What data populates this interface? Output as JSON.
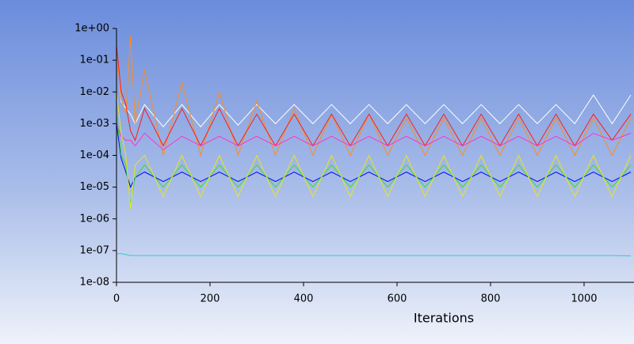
{
  "chart_data": {
    "type": "line",
    "x_label": "Iterations",
    "log_y": true,
    "xlim": [
      0,
      1108
    ],
    "ylim": [
      1e-08,
      1
    ],
    "xticks": [
      0,
      200,
      400,
      600,
      800,
      1000
    ],
    "yticks": [
      {
        "value": 1,
        "label": "1e+00"
      },
      {
        "value": 0.1,
        "label": "1e-01"
      },
      {
        "value": 0.01,
        "label": "1e-02"
      },
      {
        "value": 0.001,
        "label": "1e-03"
      },
      {
        "value": 0.0001,
        "label": "1e-04"
      },
      {
        "value": 1e-05,
        "label": "1e-05"
      },
      {
        "value": 1e-06,
        "label": "1e-06"
      },
      {
        "value": 1e-07,
        "label": "1e-07"
      },
      {
        "value": 1e-08,
        "label": "1e-08"
      }
    ],
    "x": [
      0,
      10,
      20,
      30,
      40,
      60,
      100,
      140,
      180,
      220,
      260,
      300,
      340,
      380,
      420,
      460,
      500,
      540,
      580,
      620,
      660,
      700,
      740,
      780,
      820,
      860,
      900,
      940,
      980,
      1020,
      1060,
      1100
    ],
    "series": [
      {
        "color": "#ffffff",
        "values": [
          0.3,
          0.005,
          0.003,
          0.002,
          0.001,
          0.004,
          0.0008,
          0.004,
          0.0008,
          0.004,
          0.0009,
          0.004,
          0.001,
          0.004,
          0.001,
          0.004,
          0.001,
          0.004,
          0.001,
          0.004,
          0.001,
          0.004,
          0.001,
          0.004,
          0.001,
          0.004,
          0.001,
          0.004,
          0.001,
          0.008,
          0.001,
          0.008
        ]
      },
      {
        "color": "#ff8c1a",
        "values": [
          0.2,
          0.006,
          0.002,
          0.6,
          0.001,
          0.05,
          0.0001,
          0.02,
          0.0001,
          0.01,
          0.0001,
          0.005,
          0.0001,
          0.003,
          0.0001,
          0.002,
          0.0001,
          0.002,
          0.0001,
          0.0015,
          0.0001,
          0.0015,
          0.0001,
          0.0015,
          0.0001,
          0.0015,
          0.0001,
          0.0015,
          0.0001,
          0.0015,
          0.0001,
          0.0015
        ]
      },
      {
        "color": "#ff1a1a",
        "values": [
          0.3,
          0.01,
          0.004,
          0.0006,
          0.0003,
          0.003,
          0.0002,
          0.003,
          0.0002,
          0.003,
          0.0002,
          0.002,
          0.0002,
          0.002,
          0.0002,
          0.002,
          0.0002,
          0.002,
          0.0002,
          0.002,
          0.0002,
          0.002,
          0.0002,
          0.002,
          0.0002,
          0.002,
          0.0002,
          0.002,
          0.0002,
          0.002,
          0.0003,
          0.002
        ]
      },
      {
        "color": "#ff33cc",
        "values": [
          0.001,
          0.0004,
          0.0003,
          0.0003,
          0.0002,
          0.0005,
          0.00015,
          0.0004,
          0.0002,
          0.0004,
          0.0002,
          0.0004,
          0.0002,
          0.0004,
          0.0002,
          0.0004,
          0.0002,
          0.0004,
          0.0002,
          0.0004,
          0.0002,
          0.0004,
          0.0002,
          0.0004,
          0.0002,
          0.0004,
          0.0002,
          0.0004,
          0.0002,
          0.0005,
          0.0003,
          0.0005
        ]
      },
      {
        "color": "#0000ff",
        "values": [
          0.001,
          8e-05,
          3e-05,
          1e-05,
          2e-05,
          3e-05,
          1.5e-05,
          3e-05,
          1.5e-05,
          3e-05,
          1.5e-05,
          3e-05,
          1.5e-05,
          3e-05,
          1.5e-05,
          3e-05,
          1.5e-05,
          3e-05,
          1.5e-05,
          3e-05,
          1.5e-05,
          3e-05,
          1.5e-05,
          3e-05,
          1.5e-05,
          3e-05,
          1.5e-05,
          3e-05,
          1.5e-05,
          3e-05,
          1.5e-05,
          3e-05
        ]
      },
      {
        "color": "#33dd33",
        "values": [
          0.002,
          0.0001,
          5e-05,
          3e-06,
          2e-05,
          5e-05,
          1e-05,
          5e-05,
          1e-05,
          5e-05,
          1e-05,
          5e-05,
          1e-05,
          5e-05,
          1e-05,
          5e-05,
          1e-05,
          5e-05,
          1e-05,
          5e-05,
          1e-05,
          5e-05,
          1e-05,
          5e-05,
          1e-05,
          5e-05,
          1e-05,
          5e-05,
          1e-05,
          5e-05,
          1e-05,
          5e-05
        ]
      },
      {
        "color": "#e6e61a",
        "values": [
          0.01,
          0.0005,
          0.0001,
          2e-06,
          5e-05,
          0.0001,
          5e-06,
          0.0001,
          5e-06,
          0.0001,
          5e-06,
          0.0001,
          5e-06,
          0.0001,
          5e-06,
          0.0001,
          5e-06,
          0.0001,
          5e-06,
          0.0001,
          5e-06,
          0.0001,
          5e-06,
          0.0001,
          5e-06,
          0.0001,
          5e-06,
          0.0001,
          5e-06,
          0.0001,
          5e-06,
          0.0001
        ]
      },
      {
        "color": "#33cccc",
        "values": [
          8e-08,
          8e-08,
          7.5e-08,
          7e-08,
          7e-08,
          7e-08,
          7e-08,
          7e-08,
          7e-08,
          7e-08,
          7e-08,
          7e-08,
          7e-08,
          7e-08,
          7e-08,
          7e-08,
          7e-08,
          7e-08,
          7e-08,
          7e-08,
          7e-08,
          7e-08,
          7e-08,
          7e-08,
          7e-08,
          7e-08,
          7e-08,
          7e-08,
          7e-08,
          7e-08,
          7e-08,
          6.8e-08
        ]
      }
    ]
  }
}
